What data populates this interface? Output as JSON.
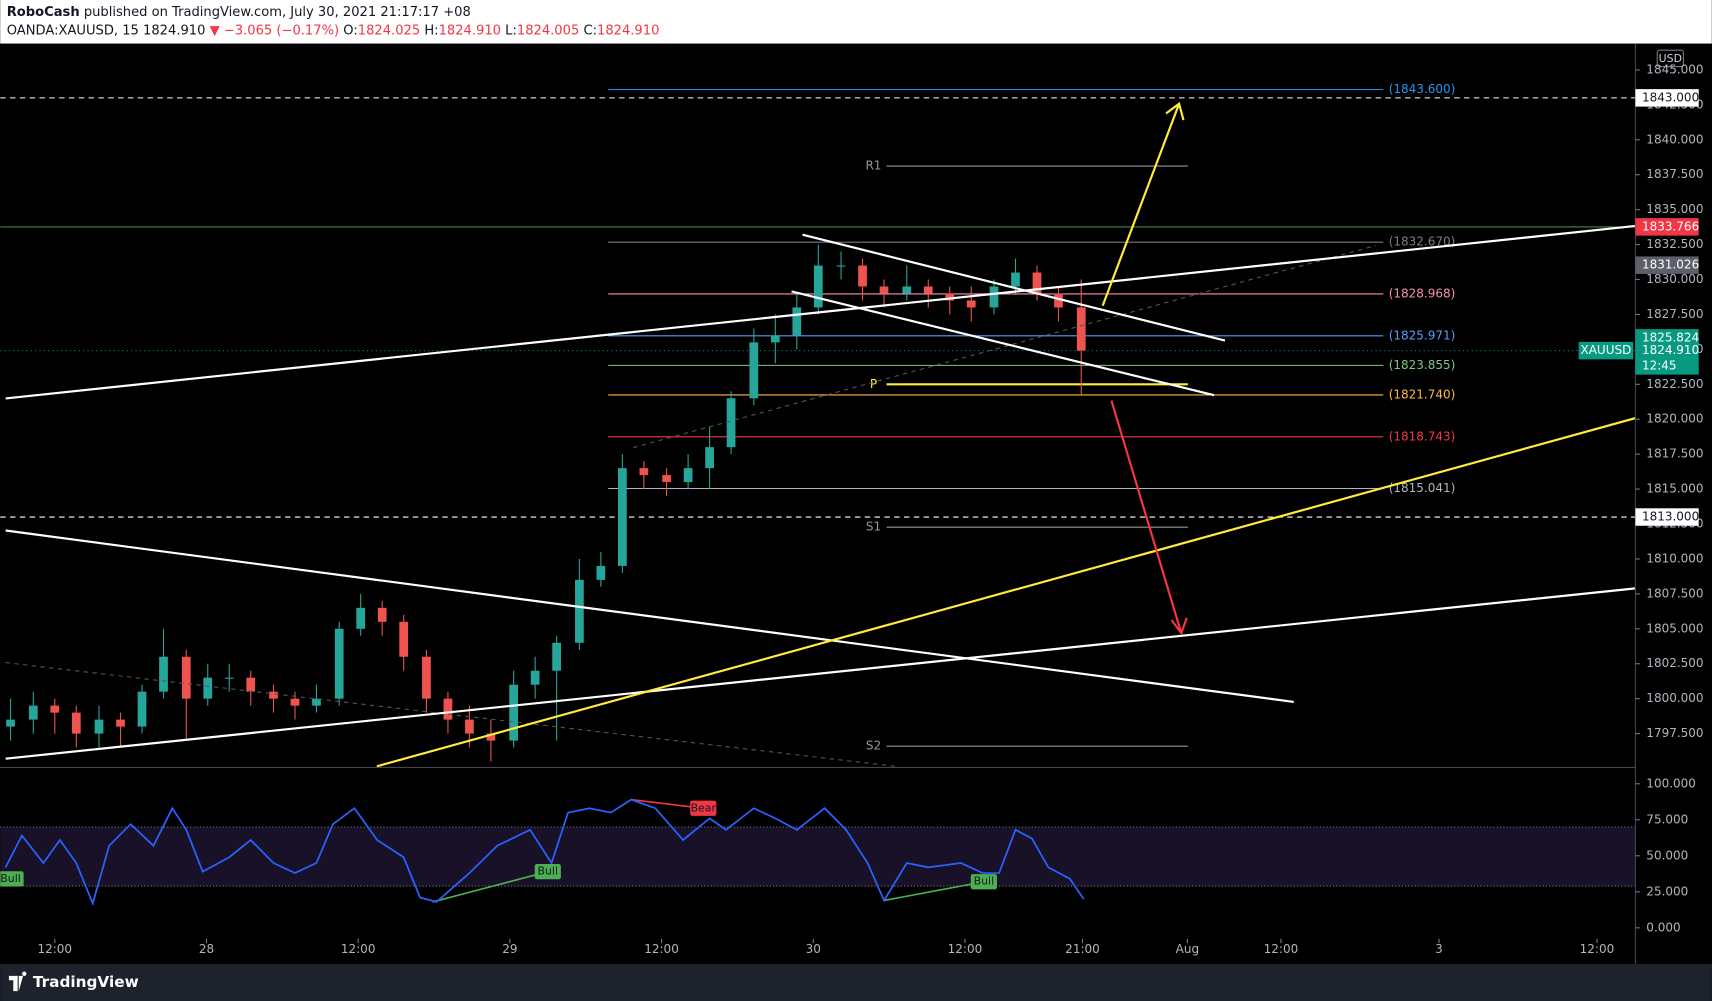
{
  "header": {
    "author": "RoboCash",
    "published": "published on TradingView.com, July 30, 2021 21:17:17 +08",
    "symbol": "OANDA:XAUUSD, 15",
    "last": "1824.910",
    "change": "▼ −3.065 (−0.17%)",
    "ohlc": [
      {
        "key": "O:",
        "value": "1824.025"
      },
      {
        "key": "H:",
        "value": "1824.910"
      },
      {
        "key": "L:",
        "value": "1824.005"
      },
      {
        "key": "C:",
        "value": "1824.910"
      }
    ],
    "currency": "USD",
    "brand": "TradingView"
  },
  "chart_data": {
    "type": "candlestick",
    "up_color": "#26a69a",
    "down_color": "#ef5350",
    "x": [
      8.5,
      10.3,
      12.0,
      13.7,
      15.5,
      17.2,
      18.9,
      20.6,
      22.4,
      24.1,
      25.8,
      27.5,
      29.3,
      31.0,
      32.7,
      34.5,
      36.2,
      37.9,
      39.6,
      41.4,
      43.1,
      44.8,
      46.5,
      48.3,
      50.0,
      51.7,
      53.5,
      55.2,
      56.9,
      58.6,
      60.4,
      62.1,
      63.8,
      65.5,
      67.3,
      69.0,
      70.7,
      72.4,
      74.2,
      75.9,
      77.6,
      79.4,
      81.1,
      82.8,
      84.5,
      86.3,
      88.0,
      89.7,
      91.4,
      93.2
    ],
    "open": [
      1798,
      1798.5,
      1799.5,
      1799,
      1797.5,
      1798.5,
      1798,
      1800.5,
      1803,
      1800,
      1801.5,
      1801.5,
      1800.5,
      1800,
      1799.5,
      1800,
      1805,
      1806.5,
      1805.5,
      1803,
      1800,
      1798.5,
      1797.5,
      1797,
      1801,
      1802,
      1804,
      1808.5,
      1809.5,
      1816.5,
      1816,
      1815.5,
      1816.5,
      1818,
      1821.5,
      1825.5,
      1826,
      1828,
      1831,
      1831,
      1829.5,
      1829,
      1829.5,
      1829,
      1828.5,
      1828,
      1829.5,
      1830.5,
      1829,
      1828
    ],
    "high": [
      1800,
      1800.5,
      1800,
      1799.5,
      1799.5,
      1799,
      1801,
      1805,
      1803.5,
      1802.5,
      1802.5,
      1802,
      1801,
      1800.5,
      1801,
      1805.5,
      1807.5,
      1807,
      1806,
      1803.5,
      1800.5,
      1799.5,
      1798.5,
      1802,
      1803,
      1804.5,
      1810,
      1810.5,
      1817.5,
      1817,
      1816.5,
      1817.5,
      1819.5,
      1822,
      1826.5,
      1827.5,
      1829,
      1832.5,
      1832,
      1831.5,
      1830,
      1831,
      1830,
      1829.5,
      1829.5,
      1830,
      1831.5,
      1831,
      1829.5,
      1830
    ],
    "low": [
      1797,
      1797.5,
      1797.5,
      1796.5,
      1796.5,
      1796.5,
      1797.5,
      1800,
      1797,
      1799.5,
      1800.5,
      1799.5,
      1799,
      1798.5,
      1799,
      1799.5,
      1804.5,
      1804.5,
      1802,
      1799,
      1797.5,
      1796.5,
      1795.5,
      1796.5,
      1800,
      1797,
      1803.5,
      1808,
      1809,
      1815,
      1814.5,
      1815,
      1815,
      1817.5,
      1821,
      1824,
      1825,
      1827.5,
      1830,
      1828.5,
      1828,
      1828.5,
      1828,
      1827.5,
      1827,
      1827.5,
      1829,
      1828.5,
      1827,
      1821.74
    ],
    "close": [
      1798.5,
      1799.5,
      1799,
      1797.5,
      1798.5,
      1798,
      1800.5,
      1803,
      1800,
      1801.5,
      1801.5,
      1800.5,
      1800,
      1799.5,
      1800,
      1805,
      1806.5,
      1805.5,
      1803,
      1800,
      1798.5,
      1797.5,
      1797,
      1801,
      1802,
      1804,
      1808.5,
      1809.5,
      1816.5,
      1816,
      1815.5,
      1816.5,
      1818,
      1821.5,
      1825.5,
      1826,
      1828,
      1831,
      1831,
      1829.5,
      1829,
      1829.5,
      1829,
      1828.5,
      1828,
      1829.5,
      1830.5,
      1829,
      1828,
      1824.91
    ],
    "xlim": [
      7.68,
      137.04
    ],
    "xticks": [
      {
        "value": 12,
        "label": "12:00"
      },
      {
        "value": 24,
        "label": "28"
      },
      {
        "value": 36,
        "label": "12:00"
      },
      {
        "value": 48,
        "label": "29"
      },
      {
        "value": 60,
        "label": "12:00"
      },
      {
        "value": 72,
        "label": "30"
      },
      {
        "value": 84,
        "label": "12:00"
      },
      {
        "value": 93.3,
        "label": "21:00"
      },
      {
        "value": 101.6,
        "label": "Aug"
      },
      {
        "value": 109,
        "label": "12:00"
      },
      {
        "value": 121.5,
        "label": "3"
      },
      {
        "value": 134,
        "label": "12:00"
      }
    ],
    "ylim": [
      1795.08,
      1846.88
    ],
    "yticks": [
      {
        "value": 1845,
        "label": "1845.000"
      },
      {
        "value": 1842.5,
        "label": "1842.500"
      },
      {
        "value": 1840,
        "label": "1840.000"
      },
      {
        "value": 1837.5,
        "label": "1837.500"
      },
      {
        "value": 1835,
        "label": "1835.000"
      },
      {
        "value": 1832.5,
        "label": "1832.500"
      },
      {
        "value": 1830,
        "label": "1830.000"
      },
      {
        "value": 1827.5,
        "label": "1827.500"
      },
      {
        "value": 1825,
        "label": "1825.000"
      },
      {
        "value": 1822.5,
        "label": "1822.500"
      },
      {
        "value": 1820,
        "label": "1820.000"
      },
      {
        "value": 1817.5,
        "label": "1817.500"
      },
      {
        "value": 1815,
        "label": "1815.000"
      },
      {
        "value": 1812.5,
        "label": "1812.500"
      },
      {
        "value": 1810,
        "label": "1810.000"
      },
      {
        "value": 1807.5,
        "label": "1807.500"
      },
      {
        "value": 1805,
        "label": "1805.000"
      },
      {
        "value": 1802.5,
        "label": "1802.500"
      },
      {
        "value": 1800,
        "label": "1800.000"
      },
      {
        "value": 1797.5,
        "label": "1797.500"
      }
    ],
    "levels": [
      {
        "value": 1843.6,
        "label": "(1843.600)",
        "color": "#2196f3"
      },
      {
        "value": 1832.67,
        "label": "(1832.670)",
        "color": "#787b86"
      },
      {
        "value": 1828.968,
        "label": "(1828.968)",
        "color": "#f48fb1"
      },
      {
        "value": 1825.971,
        "label": "(1825.971)",
        "color": "#5b9cf6"
      },
      {
        "value": 1823.855,
        "label": "(1823.855)",
        "color": "#81c784"
      },
      {
        "value": 1821.74,
        "label": "(1821.740)",
        "color": "#ffb74d"
      },
      {
        "value": 1818.743,
        "label": "(1818.743)",
        "color": "#f23645"
      },
      {
        "value": 1815.041,
        "label": "(1815.041)",
        "color": "#b2b5be"
      }
    ],
    "pivots": [
      {
        "name": "R1",
        "value": 1838.12,
        "color": "#9598a1"
      },
      {
        "name": "P",
        "value": 1822.5,
        "color": "#ffeb3b"
      },
      {
        "name": "S1",
        "value": 1812.27,
        "color": "#9598a1"
      },
      {
        "name": "S2",
        "value": 1796.6,
        "color": "#9598a1"
      }
    ],
    "hlines": [
      {
        "value": 1843,
        "label": "1843.000"
      },
      {
        "value": 1813,
        "label": "1813.000"
      }
    ],
    "price_tags": [
      {
        "value": 1833.766,
        "label": "1833.766",
        "color": "#f23645"
      },
      {
        "value": 1831.026,
        "label": "1831.026",
        "color": "#5d606b"
      },
      {
        "value": 1825.824,
        "label": "1825.824",
        "color": "#089981"
      }
    ],
    "last_tag": {
      "value": 1824.91,
      "label": "1824.910",
      "countdown": "12:45",
      "symbol": "XAUUSD",
      "color": "#089981"
    },
    "indicator": {
      "color": "#2962ff",
      "ylim": [
        -7.58,
        111.36
      ],
      "band": [
        29,
        70
      ],
      "yticks": [
        {
          "value": 100,
          "label": "100.000"
        },
        {
          "value": 75,
          "label": "75.000"
        },
        {
          "value": 50,
          "label": "50.000"
        },
        {
          "value": 25,
          "label": "25.000"
        },
        {
          "value": 0,
          "label": "0.000"
        }
      ],
      "x": [
        8.1,
        9.4,
        11.1,
        12.4,
        13.7,
        15.0,
        16.3,
        18.0,
        19.8,
        21.3,
        22.4,
        23.7,
        25.8,
        27.5,
        29.3,
        31.0,
        32.7,
        34.0,
        35.7,
        37.5,
        39.6,
        40.9,
        42.2,
        44.8,
        47.0,
        49.6,
        51.3,
        52.6,
        54.3,
        56.0,
        57.6,
        59.5,
        61.7,
        63.8,
        65.1,
        67.3,
        69.0,
        70.7,
        72.9,
        74.6,
        76.3,
        77.6,
        79.4,
        81.1,
        83.7,
        85.4,
        86.7,
        88.0,
        89.3,
        90.6,
        92.3,
        93.4
      ],
      "values": [
        42,
        64,
        45,
        61,
        45,
        17,
        57,
        72,
        57,
        83,
        68,
        39,
        49,
        61,
        45,
        38,
        45,
        72,
        83,
        61,
        49,
        21,
        18,
        38,
        57,
        68,
        45,
        80,
        83,
        80,
        89,
        83,
        61,
        76,
        68,
        83,
        76,
        68,
        83,
        68,
        45,
        19,
        45,
        42,
        45,
        38,
        38,
        68,
        62,
        42,
        34,
        20
      ],
      "labels": [
        {
          "text": "Bull",
          "x": 8.5,
          "value": 34,
          "color": "#4caf50"
        },
        {
          "text": "Bull",
          "x": 51.0,
          "value": 39,
          "color": "#4caf50"
        },
        {
          "text": "Bear",
          "x": 63.3,
          "value": 83,
          "color": "#f23645"
        },
        {
          "text": "Bull",
          "x": 85.5,
          "value": 32,
          "color": "#4caf50"
        }
      ]
    }
  }
}
